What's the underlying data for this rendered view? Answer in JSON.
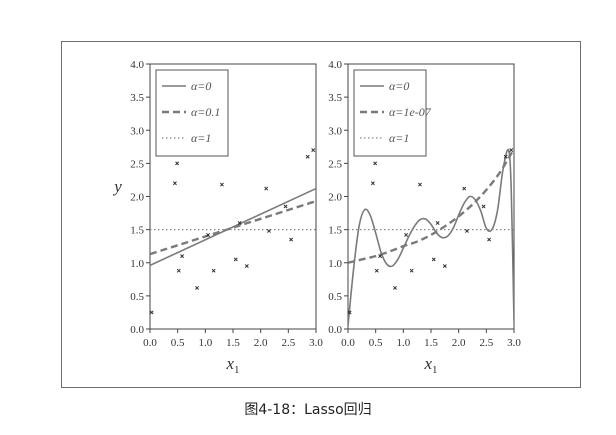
{
  "caption": "图4-18：Lasso回归",
  "chart_data": [
    {
      "type": "scatter",
      "xlabel": "x",
      "xlabel_sub": "1",
      "ylabel": "y",
      "xlim": [
        0,
        3
      ],
      "ylim": [
        0,
        4
      ],
      "xticks": [
        "0.0",
        "0.5",
        "1.0",
        "1.5",
        "2.0",
        "2.5",
        "3.0"
      ],
      "yticks": [
        "0.0",
        "0.5",
        "1.0",
        "1.5",
        "2.0",
        "2.5",
        "3.0",
        "3.5",
        "4.0"
      ],
      "legend_position": "top-left",
      "points": {
        "x": [
          0.03,
          0.45,
          0.49,
          0.52,
          0.58,
          0.85,
          1.05,
          1.15,
          1.3,
          1.55,
          1.62,
          1.75,
          2.1,
          2.15,
          2.45,
          2.55,
          2.85,
          2.95
        ],
        "y": [
          0.25,
          2.2,
          2.5,
          0.88,
          1.1,
          0.62,
          1.42,
          0.88,
          2.18,
          1.05,
          1.6,
          0.95,
          2.12,
          1.48,
          1.85,
          1.35,
          2.6,
          2.7
        ]
      },
      "series": [
        {
          "name": "α=0",
          "style": "solid",
          "x": [
            0,
            3
          ],
          "y": [
            0.96,
            2.12
          ]
        },
        {
          "name": "α=0.1",
          "style": "dashed",
          "x": [
            0,
            3
          ],
          "y": [
            1.13,
            1.93
          ]
        },
        {
          "name": "α=1",
          "style": "dotted",
          "x": [
            0,
            3
          ],
          "y": [
            1.5,
            1.5
          ]
        }
      ]
    },
    {
      "type": "scatter",
      "xlabel": "x",
      "xlabel_sub": "1",
      "xlim": [
        0,
        3
      ],
      "ylim": [
        0,
        4
      ],
      "xticks": [
        "0.0",
        "0.5",
        "1.0",
        "1.5",
        "2.0",
        "2.5",
        "3.0"
      ],
      "yticks": [
        "0.0",
        "0.5",
        "1.0",
        "1.5",
        "2.0",
        "2.5",
        "3.0",
        "3.5",
        "4.0"
      ],
      "legend_position": "top-left",
      "points": {
        "x": [
          0.03,
          0.45,
          0.49,
          0.52,
          0.58,
          0.85,
          1.05,
          1.15,
          1.3,
          1.55,
          1.62,
          1.75,
          2.1,
          2.15,
          2.45,
          2.55,
          2.85,
          2.95
        ],
        "y": [
          0.25,
          2.2,
          2.5,
          0.88,
          1.1,
          0.62,
          1.42,
          0.88,
          2.18,
          1.05,
          1.6,
          0.95,
          2.12,
          1.48,
          1.85,
          1.35,
          2.6,
          2.7
        ]
      },
      "series": [
        {
          "name": "α=0",
          "style": "solid",
          "x": [
            0.0,
            0.1,
            0.2,
            0.3,
            0.4,
            0.5,
            0.6,
            0.7,
            0.8,
            0.9,
            1.0,
            1.1,
            1.2,
            1.3,
            1.4,
            1.5,
            1.6,
            1.7,
            1.8,
            1.9,
            2.0,
            2.1,
            2.2,
            2.3,
            2.4,
            2.5,
            2.6,
            2.7,
            2.8,
            2.9,
            2.95,
            3.0
          ],
          "y": [
            0.05,
            0.9,
            1.55,
            1.8,
            1.72,
            1.45,
            1.15,
            0.98,
            0.95,
            1.05,
            1.22,
            1.4,
            1.55,
            1.65,
            1.66,
            1.58,
            1.45,
            1.38,
            1.4,
            1.52,
            1.72,
            1.9,
            2.0,
            1.95,
            1.78,
            1.52,
            1.5,
            1.78,
            2.4,
            2.7,
            2.1,
            0.1
          ]
        },
        {
          "name": "α=1e-07",
          "style": "dashed",
          "x": [
            0.0,
            0.25,
            0.5,
            0.75,
            1.0,
            1.25,
            1.5,
            1.75,
            2.0,
            2.25,
            2.5,
            2.75,
            3.0
          ],
          "y": [
            1.0,
            1.05,
            1.1,
            1.17,
            1.25,
            1.32,
            1.42,
            1.55,
            1.7,
            1.88,
            2.1,
            2.37,
            2.72
          ]
        },
        {
          "name": "α=1",
          "style": "dotted",
          "x": [
            0,
            3
          ],
          "y": [
            1.5,
            1.5
          ]
        }
      ]
    }
  ]
}
